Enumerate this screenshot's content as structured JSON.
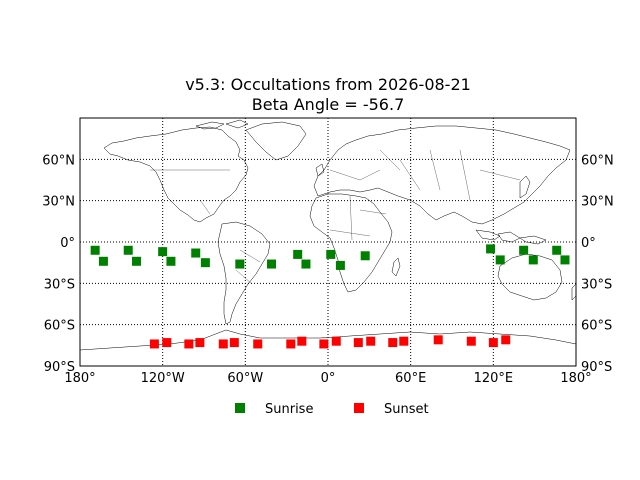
{
  "chart_data": {
    "type": "scatter",
    "title": "v5.3: Occultations from 2026-08-21",
    "subtitle": "Beta Angle = -56.7",
    "xlabel": "",
    "ylabel": "",
    "xlim": [
      -180,
      180
    ],
    "ylim": [
      -90,
      90
    ],
    "x_ticks": [
      -180,
      -120,
      -60,
      0,
      60,
      120,
      180
    ],
    "x_tick_labels": [
      "180°",
      "120°W",
      "60°W",
      "0°",
      "60°E",
      "120°E",
      "180°"
    ],
    "y_ticks": [
      60,
      30,
      0,
      -30,
      -60,
      -90
    ],
    "y_tick_labels": [
      "60°N",
      "30°N",
      "0°",
      "30°S",
      "60°S",
      "90°S"
    ],
    "grid": true,
    "legend_placement": "bottom-center",
    "series": [
      {
        "name": "Sunrise",
        "color": "#008000",
        "marker": "square",
        "points": [
          {
            "lon": -169,
            "lat": -6
          },
          {
            "lon": -163,
            "lat": -14
          },
          {
            "lon": -145,
            "lat": -6
          },
          {
            "lon": -139,
            "lat": -14
          },
          {
            "lon": -120,
            "lat": -7
          },
          {
            "lon": -114,
            "lat": -14
          },
          {
            "lon": -96,
            "lat": -8
          },
          {
            "lon": -89,
            "lat": -15
          },
          {
            "lon": -64,
            "lat": -16
          },
          {
            "lon": -41,
            "lat": -16
          },
          {
            "lon": -22,
            "lat": -9
          },
          {
            "lon": -16,
            "lat": -16
          },
          {
            "lon": 2,
            "lat": -9
          },
          {
            "lon": 9,
            "lat": -17
          },
          {
            "lon": 27,
            "lat": -10
          },
          {
            "lon": 118,
            "lat": -5
          },
          {
            "lon": 125,
            "lat": -13
          },
          {
            "lon": 142,
            "lat": -6
          },
          {
            "lon": 149,
            "lat": -13
          },
          {
            "lon": 166,
            "lat": -6
          },
          {
            "lon": 172,
            "lat": -13
          }
        ]
      },
      {
        "name": "Sunset",
        "color": "#ff0000",
        "marker": "square",
        "points": [
          {
            "lon": -126,
            "lat": -74
          },
          {
            "lon": -117,
            "lat": -73
          },
          {
            "lon": -101,
            "lat": -74
          },
          {
            "lon": -93,
            "lat": -73
          },
          {
            "lon": -76,
            "lat": -74
          },
          {
            "lon": -68,
            "lat": -73
          },
          {
            "lon": -51,
            "lat": -74
          },
          {
            "lon": -27,
            "lat": -74
          },
          {
            "lon": -19,
            "lat": -72
          },
          {
            "lon": -3,
            "lat": -74
          },
          {
            "lon": 6,
            "lat": -72
          },
          {
            "lon": 22,
            "lat": -73
          },
          {
            "lon": 31,
            "lat": -72
          },
          {
            "lon": 47,
            "lat": -73
          },
          {
            "lon": 55,
            "lat": -72
          },
          {
            "lon": 80,
            "lat": -71
          },
          {
            "lon": 104,
            "lat": -72
          },
          {
            "lon": 120,
            "lat": -73
          },
          {
            "lon": 129,
            "lat": -71
          }
        ]
      }
    ]
  }
}
